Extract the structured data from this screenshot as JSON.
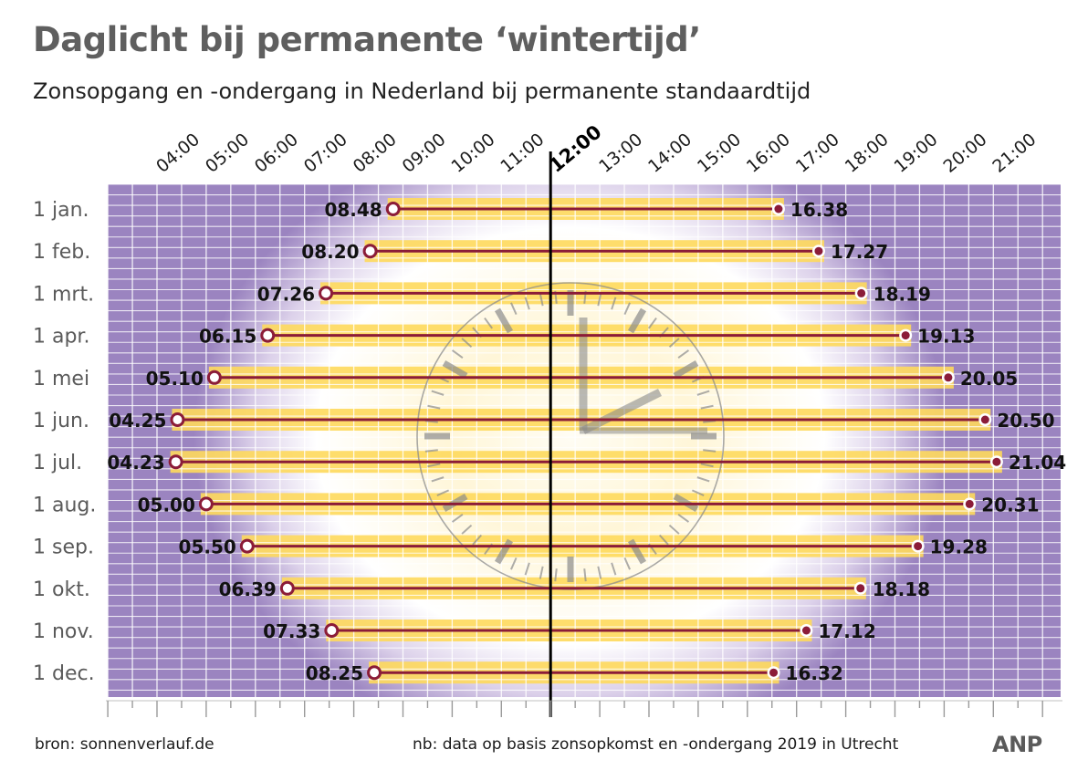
{
  "title": "Daglicht bij permanente ‘wintertijd’",
  "subtitle": "Zonsopgang en -ondergang in Nederland bij permanente standaardtijd",
  "source": "bron: sonnenverlauf.de",
  "note": "nb: data op basis zonsopkomst en -ondergang 2019 in Utrecht",
  "logo": "ANP",
  "colors": {
    "night": "#9b84c0",
    "glow": "#fff7e0",
    "daylight_bar": "#fed95c",
    "line": "#8b1c38",
    "grid": "#ffffff",
    "tick": "#9a9a9a",
    "noon_line": "#000000",
    "row_label": "#5a5a5a"
  },
  "decoration": "clock-icon",
  "chart_data": {
    "type": "range-bar",
    "x_unit": "hour",
    "xlim": [
      3,
      22
    ],
    "x_ticks": [
      "04:00",
      "05:00",
      "06:00",
      "07:00",
      "08:00",
      "09:00",
      "10:00",
      "11:00",
      "12:00",
      "13:00",
      "14:00",
      "15:00",
      "16:00",
      "17:00",
      "18:00",
      "19:00",
      "20:00",
      "21:00"
    ],
    "highlight_tick": "12:00",
    "categories": [
      "1 jan.",
      "1 feb.",
      "1 mrt.",
      "1 apr.",
      "1 mei",
      "1 jun.",
      "1 jul.",
      "1 aug.",
      "1 sep.",
      "1 okt.",
      "1 nov.",
      "1 dec."
    ],
    "sunrise": [
      "08.48",
      "08.20",
      "07.26",
      "06.15",
      "05.10",
      "04.25",
      "04.23",
      "05.00",
      "05.50",
      "06.39",
      "07.33",
      "08.25"
    ],
    "sunset": [
      "16.38",
      "17.27",
      "18.19",
      "19.13",
      "20.05",
      "20.50",
      "21.04",
      "20.31",
      "19.28",
      "18.18",
      "17.12",
      "16.32"
    ]
  }
}
